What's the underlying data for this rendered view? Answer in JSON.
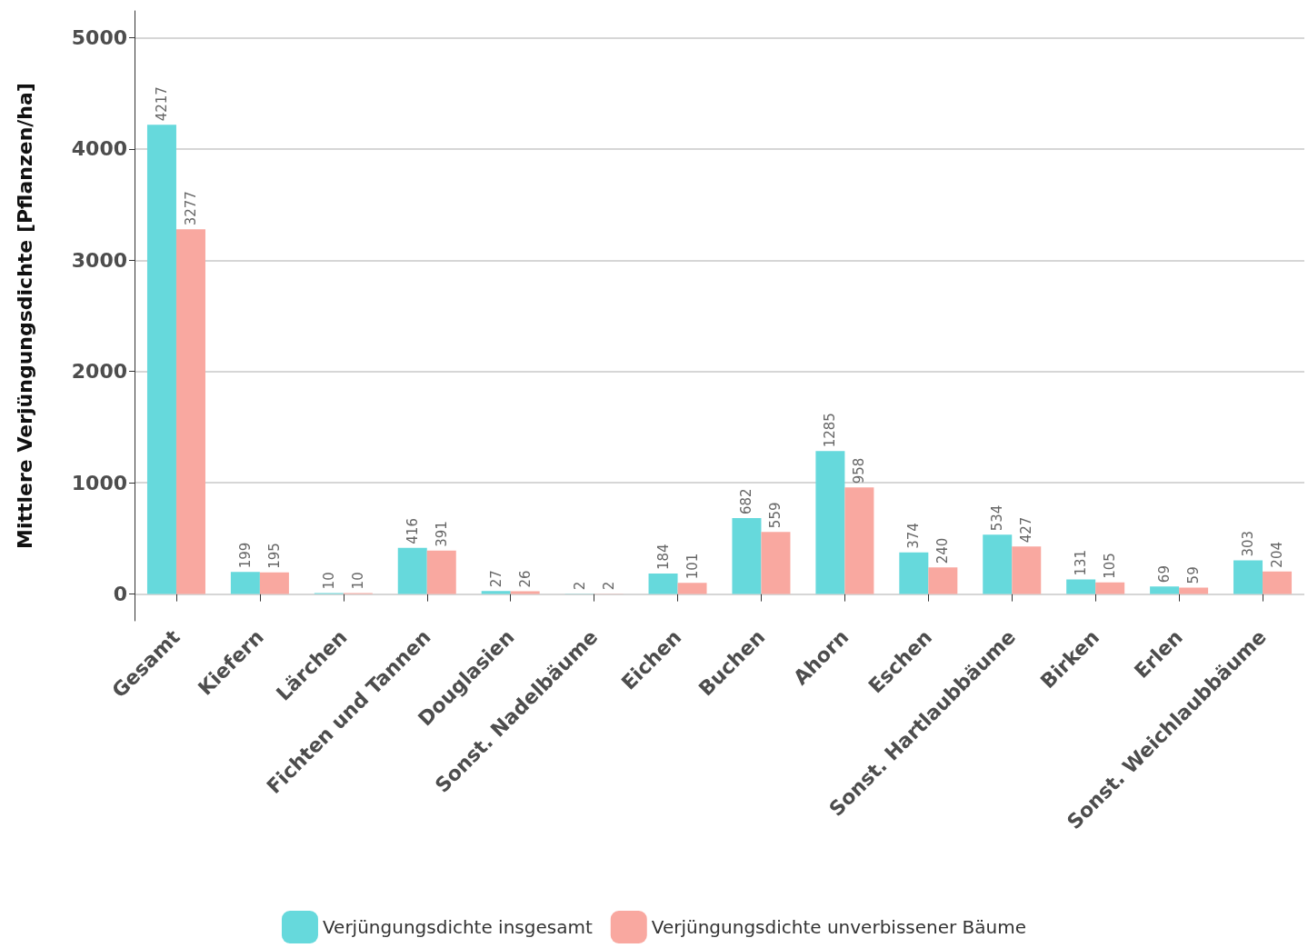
{
  "chart_data": {
    "type": "bar",
    "ylabel": "Mittlere Verjüngungsdichte [Pflanzen/ha]",
    "categories": [
      "Gesamt",
      "Kiefern",
      "Lärchen",
      "Fichten und Tannen",
      "Douglasien",
      "Sonst. Nadelbäume",
      "Eichen",
      "Buchen",
      "Ahorn",
      "Eschen",
      "Sonst. Hartlaubbäume",
      "Birken",
      "Erlen",
      "Sonst. Weichlaubbäume"
    ],
    "series": [
      {
        "name": "Verjüngungsdichte insgesamt",
        "color": "#66d9dc",
        "values": [
          4217,
          199,
          10,
          416,
          27,
          2,
          184,
          682,
          1285,
          374,
          534,
          131,
          69,
          303
        ]
      },
      {
        "name": "Verjüngungsdichte unverbissener Bäume",
        "color": "#f9a8a0",
        "values": [
          3277,
          195,
          10,
          391,
          26,
          2,
          101,
          559,
          958,
          240,
          427,
          105,
          59,
          204
        ]
      }
    ],
    "ylim": [
      -240,
      5240
    ],
    "yticks": [
      0,
      1000,
      2000,
      3000,
      4000,
      5000
    ],
    "data_labels": true,
    "grid": "y",
    "legend": "bottom"
  }
}
